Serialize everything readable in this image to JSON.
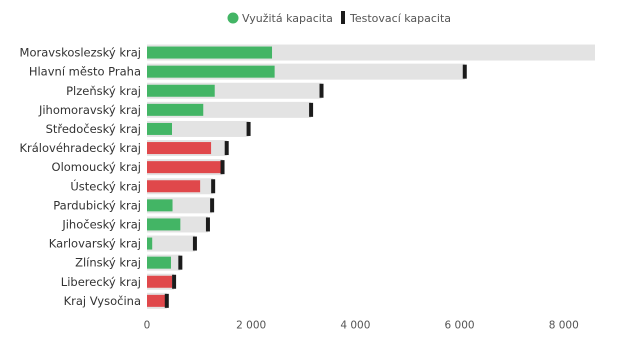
{
  "chart_data": {
    "type": "bar",
    "orientation": "horizontal",
    "categories": [
      "Moravskoslezský kraj",
      "Hlavní město Praha",
      "Plzeňský kraj",
      "Jihomoravský kraj",
      "Středočeský kraj",
      "Královéhradecký kraj",
      "Olomoucký kraj",
      "Ústecký kraj",
      "Pardubický kraj",
      "Jihočeský kraj",
      "Karlovarský kraj",
      "Zlínský kraj",
      "Liberecký kraj",
      "Kraj Vysočina"
    ],
    "series": [
      {
        "name": "Využitá kapacita",
        "values": [
          2400,
          2450,
          1300,
          1080,
          480,
          1230,
          1430,
          1020,
          490,
          640,
          100,
          460,
          480,
          350
        ]
      },
      {
        "name": "Testovací kapacita",
        "values": [
          8600,
          6100,
          3350,
          3150,
          1950,
          1530,
          1450,
          1270,
          1250,
          1170,
          920,
          640,
          520,
          380
        ]
      }
    ],
    "bar_status": [
      "green",
      "green",
      "green",
      "green",
      "green",
      "red",
      "red",
      "red",
      "green",
      "green",
      "green",
      "green",
      "red",
      "red"
    ],
    "colors": {
      "green": "#43b565",
      "red": "#e0484b",
      "capacity": "#e3e3e3",
      "marker": "#1b1b1b"
    },
    "xlim": [
      0,
      8600
    ],
    "xticks": [
      0,
      2000,
      4000,
      6000,
      8000
    ],
    "xtick_labels": [
      "0",
      "2 000",
      "4 000",
      "6 000",
      "8 000"
    ],
    "legend": {
      "position": "top-center",
      "items": [
        {
          "label": "Využitá kapacita",
          "marker": "circle",
          "color": "#43b565"
        },
        {
          "label": "Testovací kapacita",
          "marker": "bar",
          "color": "#1b1b1b"
        }
      ]
    },
    "grid": false
  }
}
